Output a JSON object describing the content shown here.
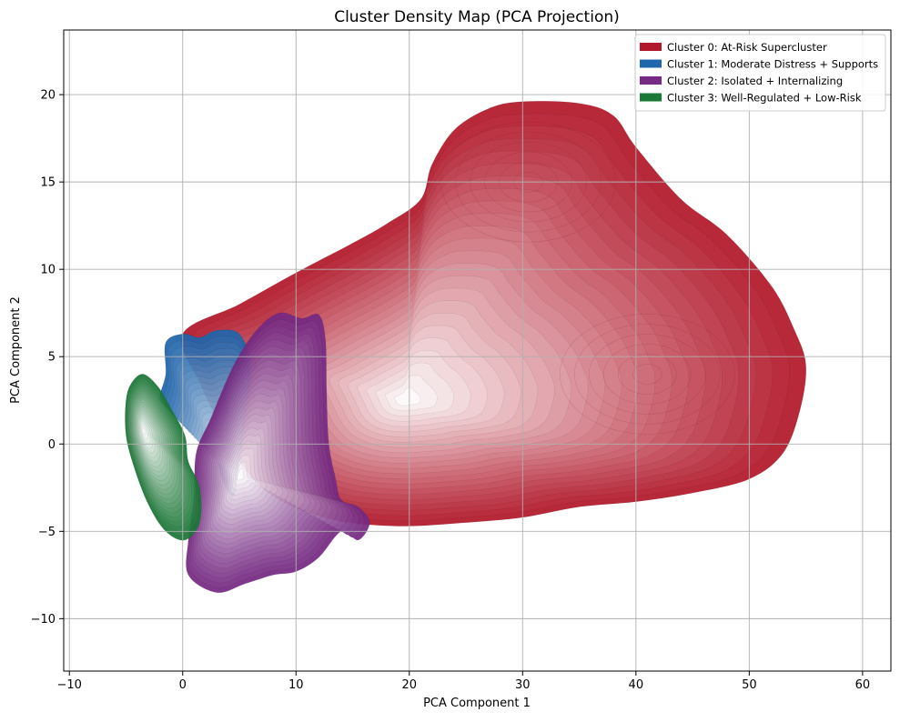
{
  "chart_data": {
    "type": "heatmap",
    "subtype": "kde-density-contours",
    "title": "Cluster Density Map (PCA Projection)",
    "xlabel": "PCA Component 1",
    "ylabel": "PCA Component 2",
    "xlim": [
      -10.5,
      62.5
    ],
    "ylim": [
      -13.0,
      23.7
    ],
    "xticks": [
      -10,
      0,
      10,
      20,
      30,
      40,
      50,
      60
    ],
    "xtick_labels": [
      "−10",
      "0",
      "10",
      "20",
      "30",
      "40",
      "50",
      "60"
    ],
    "yticks": [
      -10,
      -5,
      0,
      5,
      10,
      15,
      20
    ],
    "ytick_labels": [
      "−10",
      "−5",
      "0",
      "5",
      "10",
      "15",
      "20"
    ],
    "grid": true,
    "legend_position": "top-right",
    "levels": 24,
    "series": [
      {
        "name": "Cluster 0: At-Risk Supercluster",
        "color": "#b2182b",
        "peak": [
          19.5,
          2.5
        ],
        "secondary_modes": [
          [
            30.5,
            15.0
          ],
          [
            41.0,
            4.0
          ]
        ],
        "outline": [
          [
            0,
            6.3
          ],
          [
            5,
            8.0
          ],
          [
            10,
            9.8
          ],
          [
            15,
            11.5
          ],
          [
            18,
            12.6
          ],
          [
            21,
            14.0
          ],
          [
            22,
            16.0
          ],
          [
            24,
            18.0
          ],
          [
            27,
            19.2
          ],
          [
            30,
            19.6
          ],
          [
            35,
            19.5
          ],
          [
            38,
            18.8
          ],
          [
            40,
            17.0
          ],
          [
            44,
            14.0
          ],
          [
            48,
            12.0
          ],
          [
            52,
            9.0
          ],
          [
            54,
            6.5
          ],
          [
            55,
            4.5
          ],
          [
            54.5,
            2.0
          ],
          [
            53,
            -0.5
          ],
          [
            50,
            -2.0
          ],
          [
            45,
            -2.8
          ],
          [
            40,
            -3.3
          ],
          [
            35,
            -3.6
          ],
          [
            30,
            -4.2
          ],
          [
            25,
            -4.5
          ],
          [
            19,
            -4.7
          ],
          [
            13,
            -4.3
          ],
          [
            8,
            -3.0
          ],
          [
            5,
            -1.0
          ],
          [
            3,
            1.5
          ],
          [
            1.5,
            3.5
          ]
        ]
      },
      {
        "name": "Cluster 1: Moderate Distress + Supports",
        "color": "#2166ac",
        "peak": [
          4.5,
          -2.0
        ],
        "outline": [
          [
            -1.5,
            4.0
          ],
          [
            -1.5,
            5.8
          ],
          [
            0,
            6.3
          ],
          [
            1.5,
            6.1
          ],
          [
            3,
            6.5
          ],
          [
            5,
            6.3
          ],
          [
            6,
            4.5
          ],
          [
            5.5,
            2.0
          ],
          [
            5,
            -1.0
          ],
          [
            4.5,
            -3.0
          ],
          [
            3.5,
            -2.0
          ],
          [
            2.5,
            0.5
          ],
          [
            1,
            2.0
          ],
          [
            -0.5,
            2.0
          ],
          [
            -2,
            2.5
          ]
        ]
      },
      {
        "name": "Cluster 2: Isolated + Internalizing",
        "color": "#762a83",
        "peak": [
          5.0,
          -1.8
        ],
        "outline": [
          [
            2.5,
            1.5
          ],
          [
            4.5,
            4.5
          ],
          [
            6.5,
            6.5
          ],
          [
            8.5,
            7.5
          ],
          [
            10.5,
            7.2
          ],
          [
            12,
            7.4
          ],
          [
            12.6,
            6.0
          ],
          [
            12.7,
            3.0
          ],
          [
            12.9,
            0.0
          ],
          [
            13.5,
            -2.0
          ],
          [
            14,
            -3.2
          ],
          [
            15.5,
            -3.6
          ],
          [
            16.5,
            -4.5
          ],
          [
            15.5,
            -5.5
          ],
          [
            14,
            -5.0
          ],
          [
            12,
            -6.5
          ],
          [
            10,
            -7.3
          ],
          [
            8,
            -7.5
          ],
          [
            5.5,
            -8.0
          ],
          [
            3,
            -8.5
          ],
          [
            0.5,
            -7.5
          ],
          [
            0.5,
            -5.5
          ],
          [
            1.0,
            -3.0
          ],
          [
            1.2,
            -0.5
          ]
        ]
      },
      {
        "name": "Cluster 3: Well-Regulated + Low-Risk",
        "color": "#1b7837",
        "peak": [
          -3.5,
          0.8
        ],
        "outline": [
          [
            -4.5,
            3.5
          ],
          [
            -3.5,
            4.0
          ],
          [
            -2.2,
            3.3
          ],
          [
            -1.0,
            2.0
          ],
          [
            0.2,
            0.5
          ],
          [
            0.5,
            -1.0
          ],
          [
            1.5,
            -2.5
          ],
          [
            1.5,
            -4.5
          ],
          [
            0.2,
            -5.5
          ],
          [
            -1.5,
            -5.0
          ],
          [
            -3.0,
            -3.5
          ],
          [
            -4.2,
            -1.5
          ],
          [
            -5.0,
            0.5
          ],
          [
            -5.0,
            2.5
          ]
        ]
      }
    ]
  }
}
